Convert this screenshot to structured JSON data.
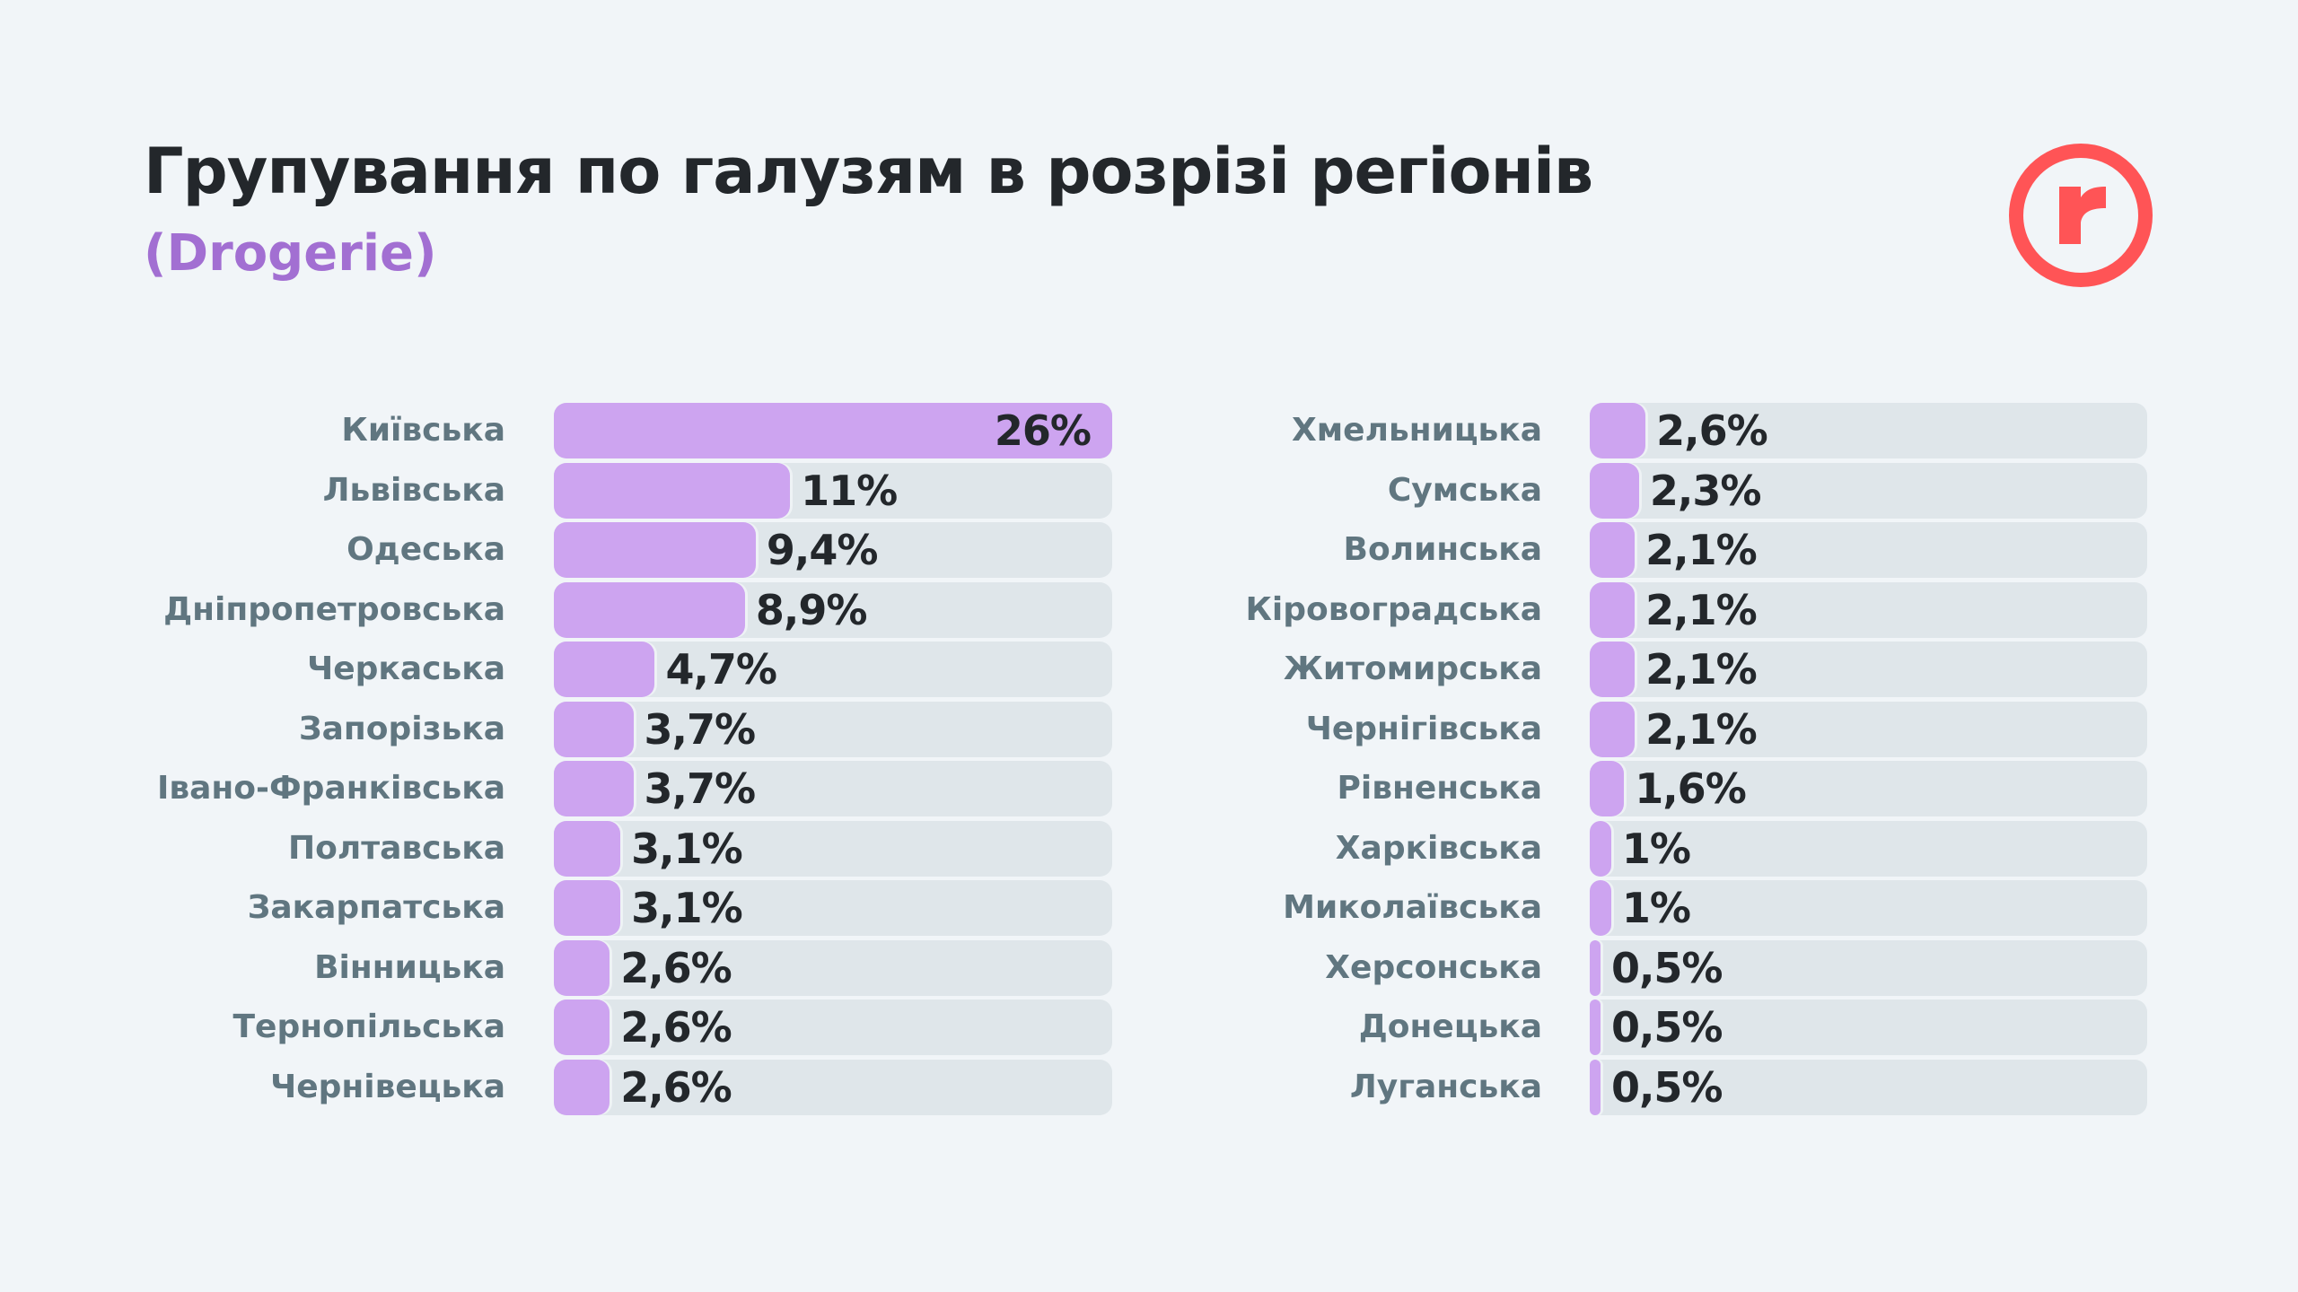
{
  "header": {
    "title": "Групування по галузям в розрізі регіонів",
    "subtitle": "(Drogerie)"
  },
  "logo": {
    "letter": "r",
    "color": "#ff5456"
  },
  "colors": {
    "fill": "#cda4f0",
    "track": "#dfe6ea",
    "label": "#607680",
    "value": "#23272b"
  },
  "chart_data": {
    "type": "bar",
    "orientation": "horizontal",
    "title": "Групування по галузям в розрізі регіонів",
    "subtitle": "(Drogerie)",
    "xlim": [
      0,
      26
    ],
    "groups": [
      {
        "categories": [
          "Київська",
          "Львівська",
          "Одеська",
          "Дніпропетровська",
          "Черкаська",
          "Запорізька",
          "Івано-Франківська",
          "Полтавська",
          "Закарпатська",
          "Вінницька",
          "Тернопільська",
          "Чернівецька"
        ],
        "values": [
          26,
          11,
          9.4,
          8.9,
          4.7,
          3.7,
          3.7,
          3.1,
          3.1,
          2.6,
          2.6,
          2.6
        ],
        "labels": [
          "26%",
          "11%",
          "9,4%",
          "8,9%",
          "4,7%",
          "3,7%",
          "3,7%",
          "3,1%",
          "3,1%",
          "2,6%",
          "2,6%",
          "2,6%"
        ]
      },
      {
        "categories": [
          "Хмельницька",
          "Сумська",
          "Волинська",
          "Кіровоградська",
          "Житомирська",
          "Чернігівська",
          "Рівненська",
          "Харківська",
          "Миколаївська",
          "Херсонська",
          "Донецька",
          "Луганська"
        ],
        "values": [
          2.6,
          2.3,
          2.1,
          2.1,
          2.1,
          2.1,
          1.6,
          1,
          1,
          0.5,
          0.5,
          0.5
        ],
        "labels": [
          "2,6%",
          "2,3%",
          "2,1%",
          "2,1%",
          "2,1%",
          "2,1%",
          "1,6%",
          "1%",
          "1%",
          "0,5%",
          "0,5%",
          "0,5%"
        ]
      }
    ]
  }
}
